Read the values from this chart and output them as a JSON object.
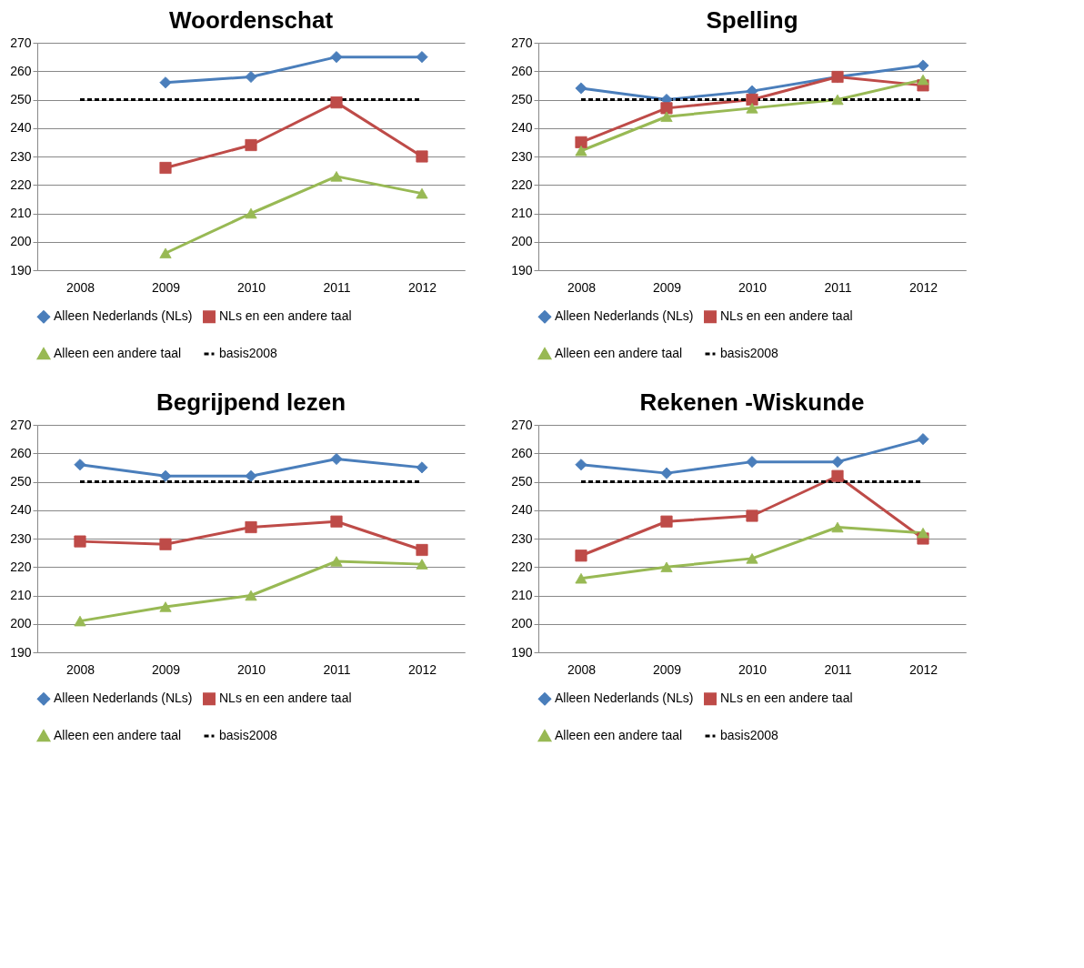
{
  "chart_data": [
    {
      "type": "line",
      "title": "Woordenschat",
      "categories": [
        "2008",
        "2009",
        "2010",
        "2011",
        "2012"
      ],
      "ylim": [
        190,
        270
      ],
      "yticks": [
        190,
        200,
        210,
        220,
        230,
        240,
        250,
        260,
        270
      ],
      "grid": "y",
      "legend": "bottom",
      "series": [
        {
          "name": "Alleen Nederlands (NLs)",
          "color": "#4a7ebb",
          "marker": "diamond",
          "line_style": "solid",
          "values": [
            null,
            256,
            258,
            265,
            265
          ]
        },
        {
          "name": "NLs en een andere taal",
          "color": "#be4b48",
          "marker": "square",
          "line_style": "solid",
          "values": [
            null,
            226,
            234,
            249,
            230
          ]
        },
        {
          "name": "Alleen een andere taal",
          "color": "#98b954",
          "marker": "triangle",
          "line_style": "solid",
          "values": [
            null,
            196,
            210,
            223,
            217
          ]
        },
        {
          "name": "basis2008",
          "color": "#000000",
          "marker": "none",
          "line_style": "dashed",
          "values": [
            250,
            250,
            250,
            250,
            250
          ]
        }
      ]
    },
    {
      "type": "line",
      "title": "Spelling",
      "categories": [
        "2008",
        "2009",
        "2010",
        "2011",
        "2012"
      ],
      "ylim": [
        190,
        270
      ],
      "yticks": [
        190,
        200,
        210,
        220,
        230,
        240,
        250,
        260,
        270
      ],
      "grid": "y",
      "legend": "bottom",
      "series": [
        {
          "name": "Alleen Nederlands (NLs)",
          "color": "#4a7ebb",
          "marker": "diamond",
          "line_style": "solid",
          "values": [
            254,
            250,
            253,
            258,
            262
          ]
        },
        {
          "name": "NLs en een andere taal",
          "color": "#be4b48",
          "marker": "square",
          "line_style": "solid",
          "values": [
            235,
            247,
            250,
            258,
            255
          ]
        },
        {
          "name": "Alleen een andere taal",
          "color": "#98b954",
          "marker": "triangle",
          "line_style": "solid",
          "values": [
            232,
            244,
            247,
            250,
            257
          ]
        },
        {
          "name": "basis2008",
          "color": "#000000",
          "marker": "none",
          "line_style": "dashed",
          "values": [
            250,
            250,
            250,
            250,
            250
          ]
        }
      ]
    },
    {
      "type": "line",
      "title": "Begrijpend lezen",
      "categories": [
        "2008",
        "2009",
        "2010",
        "2011",
        "2012"
      ],
      "ylim": [
        190,
        270
      ],
      "yticks": [
        190,
        200,
        210,
        220,
        230,
        240,
        250,
        260,
        270
      ],
      "grid": "y",
      "legend": "bottom",
      "series": [
        {
          "name": "Alleen Nederlands (NLs)",
          "color": "#4a7ebb",
          "marker": "diamond",
          "line_style": "solid",
          "values": [
            256,
            252,
            252,
            258,
            255
          ]
        },
        {
          "name": "NLs en een andere taal",
          "color": "#be4b48",
          "marker": "square",
          "line_style": "solid",
          "values": [
            229,
            228,
            234,
            236,
            226
          ]
        },
        {
          "name": "Alleen een andere taal",
          "color": "#98b954",
          "marker": "triangle",
          "line_style": "solid",
          "values": [
            201,
            206,
            210,
            222,
            221
          ]
        },
        {
          "name": "basis2008",
          "color": "#000000",
          "marker": "none",
          "line_style": "dashed",
          "values": [
            250,
            250,
            250,
            250,
            250
          ]
        }
      ]
    },
    {
      "type": "line",
      "title": "Rekenen -Wiskunde",
      "categories": [
        "2008",
        "2009",
        "2010",
        "2011",
        "2012"
      ],
      "ylim": [
        190,
        270
      ],
      "yticks": [
        190,
        200,
        210,
        220,
        230,
        240,
        250,
        260,
        270
      ],
      "grid": "y",
      "legend": "bottom",
      "series": [
        {
          "name": "Alleen Nederlands (NLs)",
          "color": "#4a7ebb",
          "marker": "diamond",
          "line_style": "solid",
          "values": [
            256,
            253,
            257,
            257,
            265
          ]
        },
        {
          "name": "NLs en een andere taal",
          "color": "#be4b48",
          "marker": "square",
          "line_style": "solid",
          "values": [
            224,
            236,
            238,
            252,
            230
          ]
        },
        {
          "name": "Alleen een andere taal",
          "color": "#98b954",
          "marker": "triangle",
          "line_style": "solid",
          "values": [
            216,
            220,
            223,
            234,
            232
          ]
        },
        {
          "name": "basis2008",
          "color": "#000000",
          "marker": "none",
          "line_style": "dashed",
          "values": [
            250,
            250,
            250,
            250,
            250
          ]
        }
      ]
    }
  ]
}
